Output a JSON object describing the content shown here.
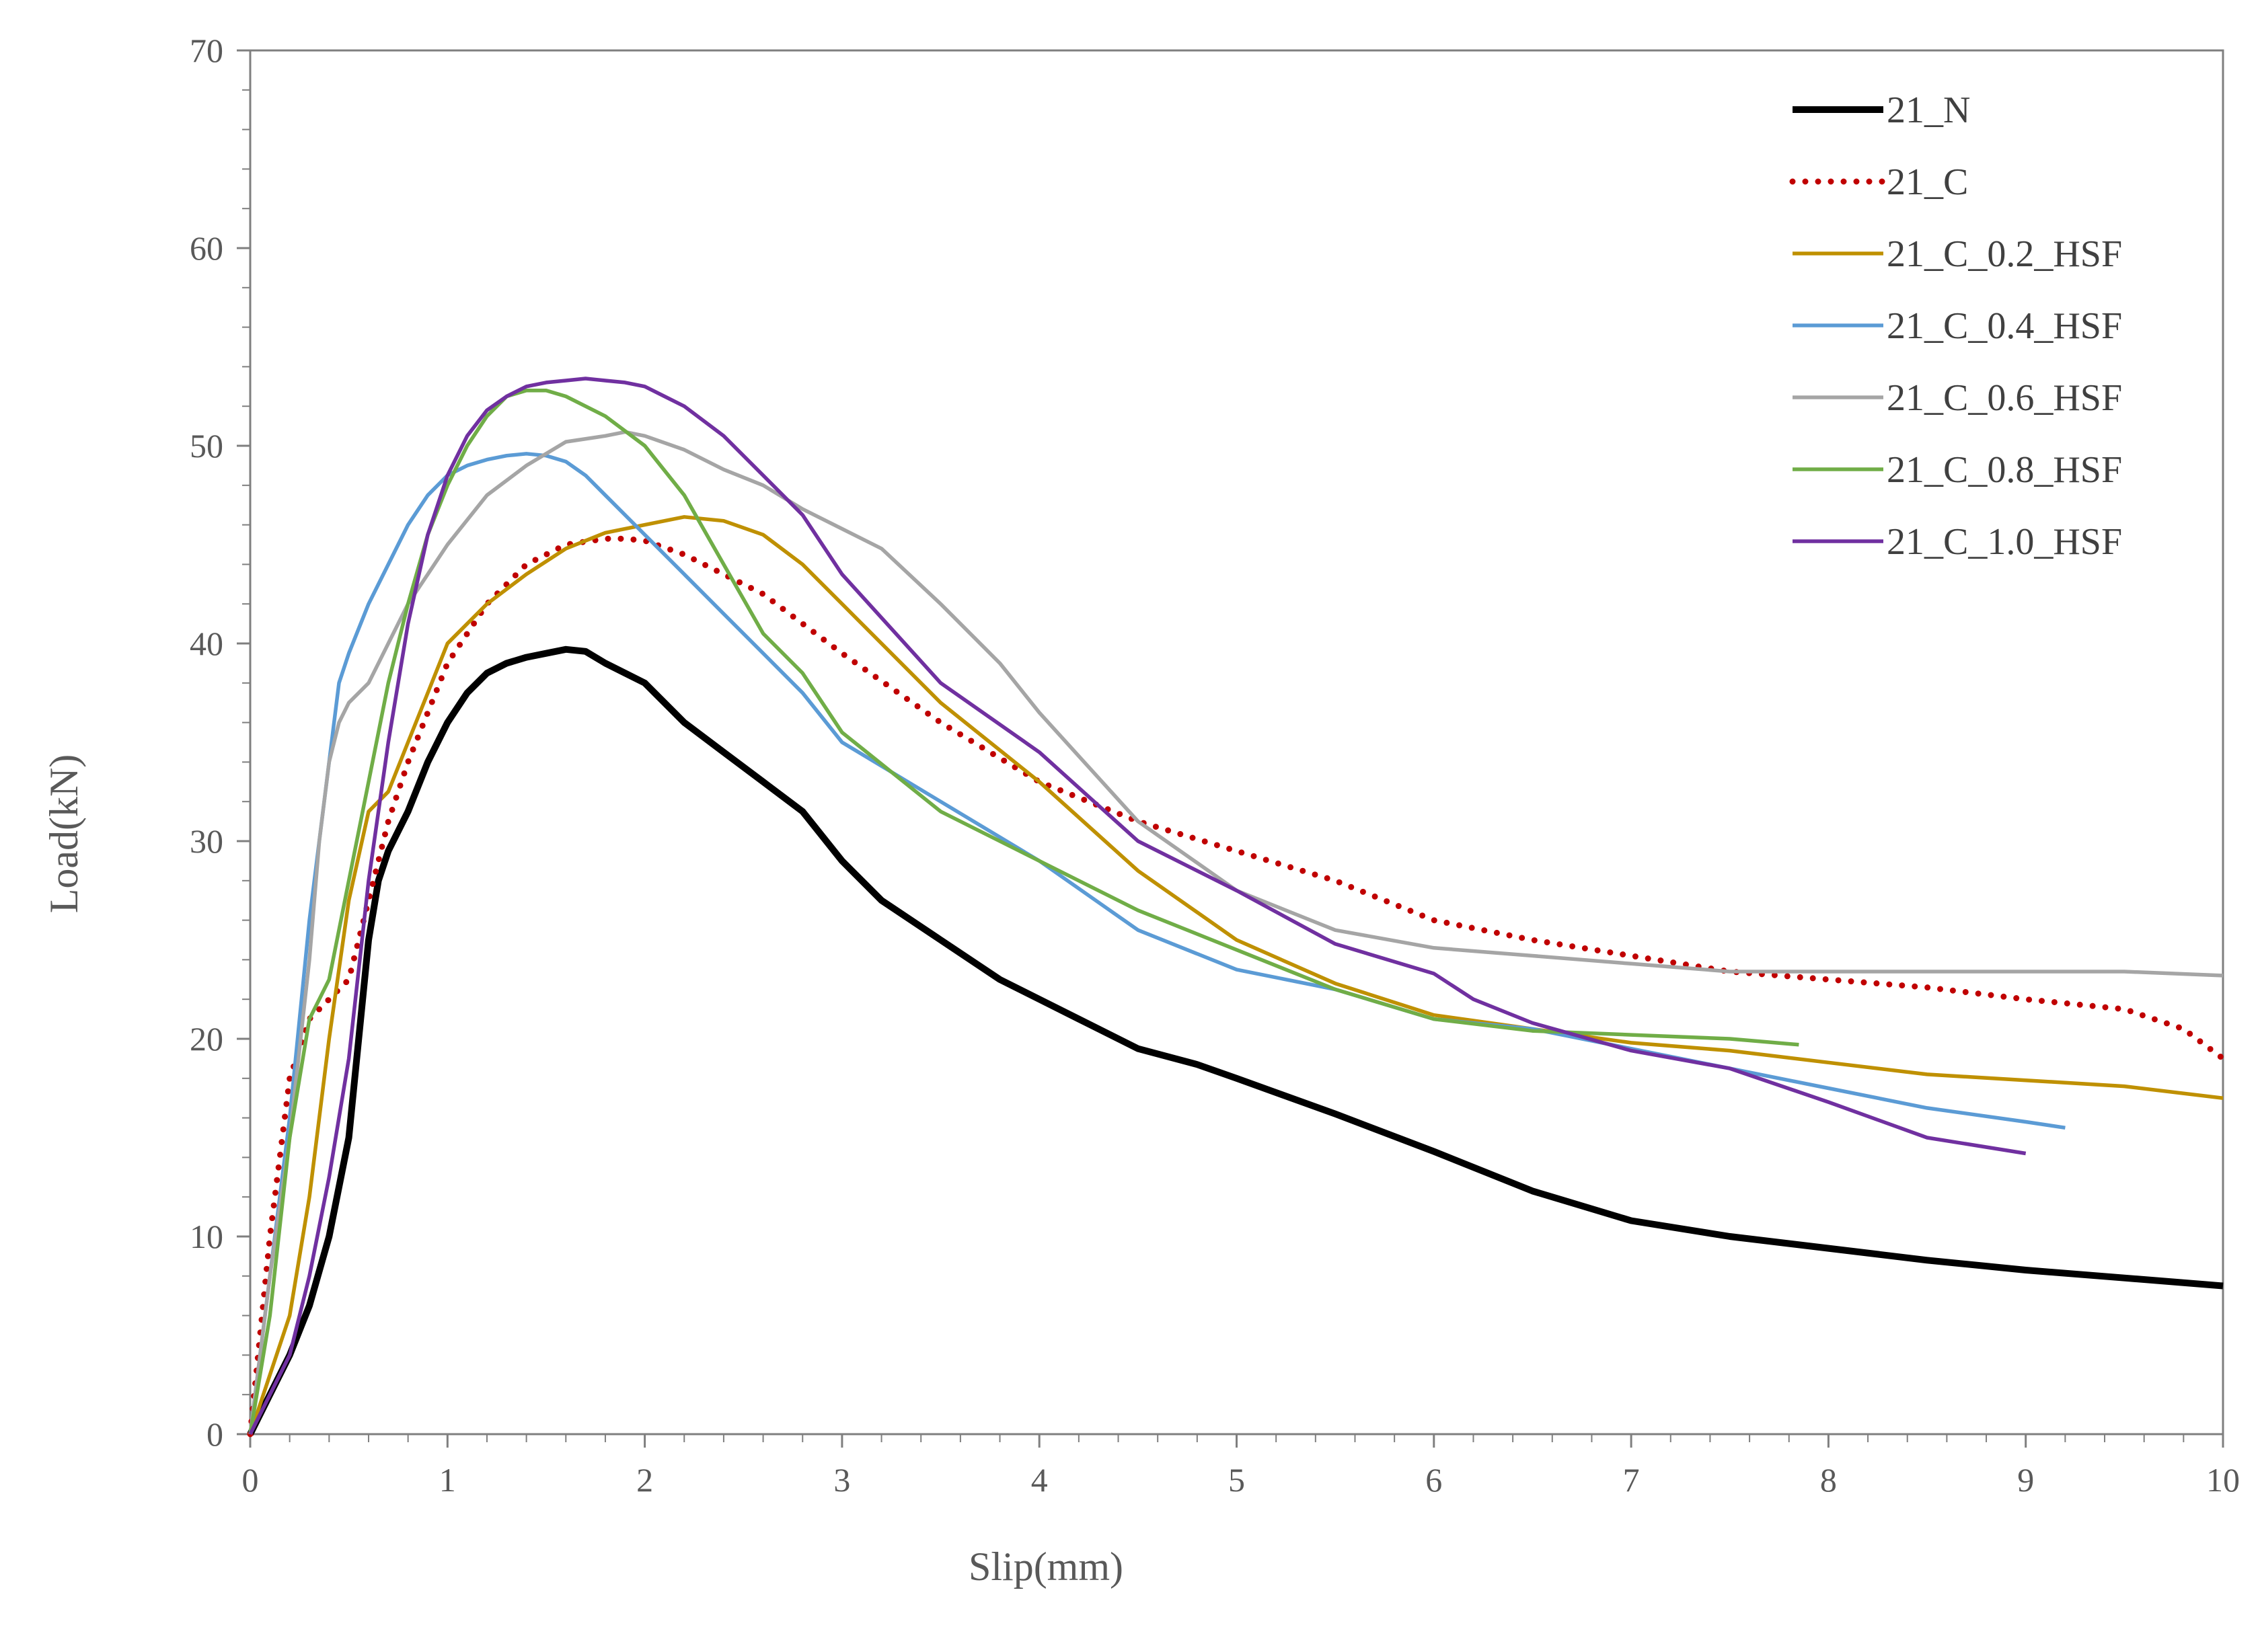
{
  "chart_data": {
    "type": "line",
    "title": "",
    "xlabel": "Slip(mm)",
    "ylabel": "Load(kN)",
    "xlim": [
      0,
      10
    ],
    "ylim": [
      0,
      70
    ],
    "xticks": [
      0,
      1,
      2,
      3,
      4,
      5,
      6,
      7,
      8,
      9,
      10
    ],
    "yticks": [
      0,
      10,
      20,
      30,
      40,
      50,
      60,
      70
    ],
    "grid": false,
    "legend_position": "top-right",
    "series": [
      {
        "name": "21_N",
        "color": "#000000",
        "style": "solid-thick",
        "x": [
          0,
          0.1,
          0.2,
          0.3,
          0.4,
          0.5,
          0.55,
          0.6,
          0.65,
          0.7,
          0.8,
          0.9,
          1.0,
          1.1,
          1.2,
          1.3,
          1.4,
          1.5,
          1.6,
          1.7,
          1.8,
          1.9,
          2.0,
          2.2,
          2.4,
          2.6,
          2.8,
          3.0,
          3.2,
          3.5,
          3.8,
          4.0,
          4.2,
          4.5,
          4.8,
          5.0,
          5.5,
          6.0,
          6.5,
          7.0,
          7.5,
          8.0,
          8.5,
          9.0,
          9.5,
          10.0
        ],
        "y": [
          0,
          2,
          4,
          6.5,
          10,
          15,
          20,
          25,
          28,
          29.5,
          31.5,
          34,
          36,
          37.5,
          38.5,
          39,
          39.3,
          39.5,
          39.7,
          39.6,
          39,
          38.5,
          38,
          36,
          34.5,
          33,
          31.5,
          29,
          27,
          25,
          23,
          22,
          21,
          19.5,
          18.7,
          18,
          16.2,
          14.3,
          12.3,
          10.8,
          10,
          9.4,
          8.8,
          8.3,
          7.9,
          7.5
        ]
      },
      {
        "name": "21_C",
        "color": "#c00000",
        "style": "dotted",
        "x": [
          0,
          0.1,
          0.2,
          0.3,
          0.4,
          0.5,
          0.6,
          0.7,
          0.8,
          1.0,
          1.2,
          1.4,
          1.6,
          1.8,
          1.9,
          2.0,
          2.2,
          2.4,
          2.6,
          2.8,
          3.0,
          3.5,
          4.0,
          4.5,
          5.0,
          5.5,
          6.0,
          6.5,
          7.0,
          7.5,
          8.0,
          8.5,
          9.0,
          9.5,
          9.8,
          10.0
        ],
        "y": [
          0,
          10,
          18,
          21,
          22,
          23,
          27,
          31,
          34,
          39,
          42,
          44,
          45,
          45.3,
          45.3,
          45.2,
          44.5,
          43.5,
          42.5,
          41,
          39.5,
          36,
          33,
          31,
          29.5,
          28,
          26,
          25,
          24.2,
          23.4,
          23,
          22.6,
          22,
          21.5,
          20.5,
          19
        ]
      },
      {
        "name": "21_C_0.2_HSF",
        "color": "#bf9000",
        "style": "solid",
        "x": [
          0,
          0.1,
          0.2,
          0.3,
          0.4,
          0.5,
          0.6,
          0.7,
          0.8,
          0.9,
          1.0,
          1.2,
          1.4,
          1.6,
          1.8,
          2.0,
          2.2,
          2.4,
          2.6,
          2.8,
          3.0,
          3.5,
          4.0,
          4.5,
          5.0,
          5.5,
          6.0,
          6.5,
          7.0,
          7.5,
          8.0,
          8.5,
          9.0,
          9.5,
          10.0
        ],
        "y": [
          0,
          3,
          6,
          12,
          20,
          27,
          31.5,
          32.5,
          35,
          37.5,
          40,
          42,
          43.5,
          44.8,
          45.6,
          46,
          46.4,
          46.2,
          45.5,
          44,
          42,
          37,
          33,
          28.5,
          25,
          22.8,
          21.2,
          20.5,
          19.8,
          19.4,
          18.8,
          18.2,
          17.9,
          17.6,
          17
        ]
      },
      {
        "name": "21_C_0.4_HSF",
        "color": "#5b9bd5",
        "style": "solid",
        "x": [
          0,
          0.1,
          0.2,
          0.3,
          0.4,
          0.45,
          0.5,
          0.6,
          0.7,
          0.8,
          0.9,
          1.0,
          1.1,
          1.2,
          1.3,
          1.4,
          1.5,
          1.6,
          1.7,
          1.8,
          2.0,
          2.2,
          2.4,
          2.6,
          2.8,
          3.0,
          3.5,
          4.0,
          4.5,
          5.0,
          5.5,
          6.0,
          6.5,
          7.0,
          7.5,
          8.0,
          8.5,
          9.0,
          9.2
        ],
        "y": [
          0,
          8,
          16,
          26,
          34,
          38,
          39.5,
          42,
          44,
          46,
          47.5,
          48.5,
          49,
          49.3,
          49.5,
          49.6,
          49.5,
          49.2,
          48.5,
          47.5,
          45.5,
          43.5,
          41.5,
          39.5,
          37.5,
          35,
          32,
          29,
          25.5,
          23.5,
          22.5,
          21,
          20.5,
          19.5,
          18.5,
          17.5,
          16.5,
          15.8,
          15.5
        ]
      },
      {
        "name": "21_C_0.6_HSF",
        "color": "#a5a5a5",
        "style": "solid",
        "x": [
          0,
          0.1,
          0.2,
          0.3,
          0.35,
          0.4,
          0.45,
          0.5,
          0.6,
          0.7,
          0.8,
          0.9,
          1.0,
          1.2,
          1.4,
          1.6,
          1.8,
          1.9,
          2.0,
          2.2,
          2.4,
          2.6,
          2.8,
          3.0,
          3.2,
          3.5,
          3.8,
          4.0,
          4.5,
          5.0,
          5.5,
          6.0,
          6.5,
          7.0,
          7.5,
          8.0,
          8.5,
          9.0,
          9.5,
          10.0
        ],
        "y": [
          0,
          8,
          15,
          24,
          30,
          34,
          36,
          37,
          38,
          40,
          42,
          43.5,
          45,
          47.5,
          49,
          50.2,
          50.5,
          50.7,
          50.5,
          49.8,
          48.8,
          48,
          46.8,
          45.8,
          44.8,
          42,
          39,
          36.5,
          31,
          27.5,
          25.5,
          24.6,
          24.2,
          23.8,
          23.4,
          23.4,
          23.4,
          23.4,
          23.4,
          23.2
        ]
      },
      {
        "name": "21_C_0.8_HSF",
        "color": "#70ad47",
        "style": "solid",
        "x": [
          0,
          0.1,
          0.2,
          0.3,
          0.35,
          0.4,
          0.5,
          0.6,
          0.7,
          0.8,
          0.9,
          1.0,
          1.1,
          1.2,
          1.3,
          1.4,
          1.5,
          1.6,
          1.8,
          2.0,
          2.2,
          2.4,
          2.6,
          2.8,
          3.0,
          3.5,
          4.0,
          4.5,
          5.0,
          5.5,
          6.0,
          6.5,
          7.0,
          7.5,
          7.85
        ],
        "y": [
          0,
          6,
          15,
          21,
          22,
          23,
          28,
          33,
          38,
          42,
          45.5,
          48,
          50,
          51.5,
          52.5,
          52.8,
          52.8,
          52.5,
          51.5,
          50,
          47.5,
          44,
          40.5,
          38.5,
          35.5,
          31.5,
          29,
          26.5,
          24.5,
          22.5,
          21,
          20.4,
          20.2,
          20,
          19.7
        ]
      },
      {
        "name": "21_C_1.0_HSF",
        "color": "#7030a0",
        "style": "solid",
        "x": [
          0,
          0.1,
          0.2,
          0.3,
          0.4,
          0.5,
          0.6,
          0.7,
          0.8,
          0.9,
          1.0,
          1.1,
          1.2,
          1.3,
          1.4,
          1.5,
          1.6,
          1.7,
          1.8,
          1.9,
          2.0,
          2.1,
          2.2,
          2.4,
          2.6,
          2.8,
          3.0,
          3.5,
          4.0,
          4.5,
          5.0,
          5.5,
          6.0,
          6.2,
          6.5,
          7.0,
          7.5,
          8.0,
          8.5,
          9.0
        ],
        "y": [
          0,
          2,
          4,
          8,
          13,
          19,
          28,
          35,
          41,
          45.5,
          48.5,
          50.5,
          51.8,
          52.5,
          53,
          53.2,
          53.3,
          53.4,
          53.3,
          53.2,
          53,
          52.5,
          52,
          50.5,
          48.5,
          46.5,
          43.5,
          38,
          34.5,
          30,
          27.5,
          24.8,
          23.3,
          22,
          20.8,
          19.4,
          18.5,
          16.8,
          15,
          14.2
        ]
      }
    ]
  }
}
